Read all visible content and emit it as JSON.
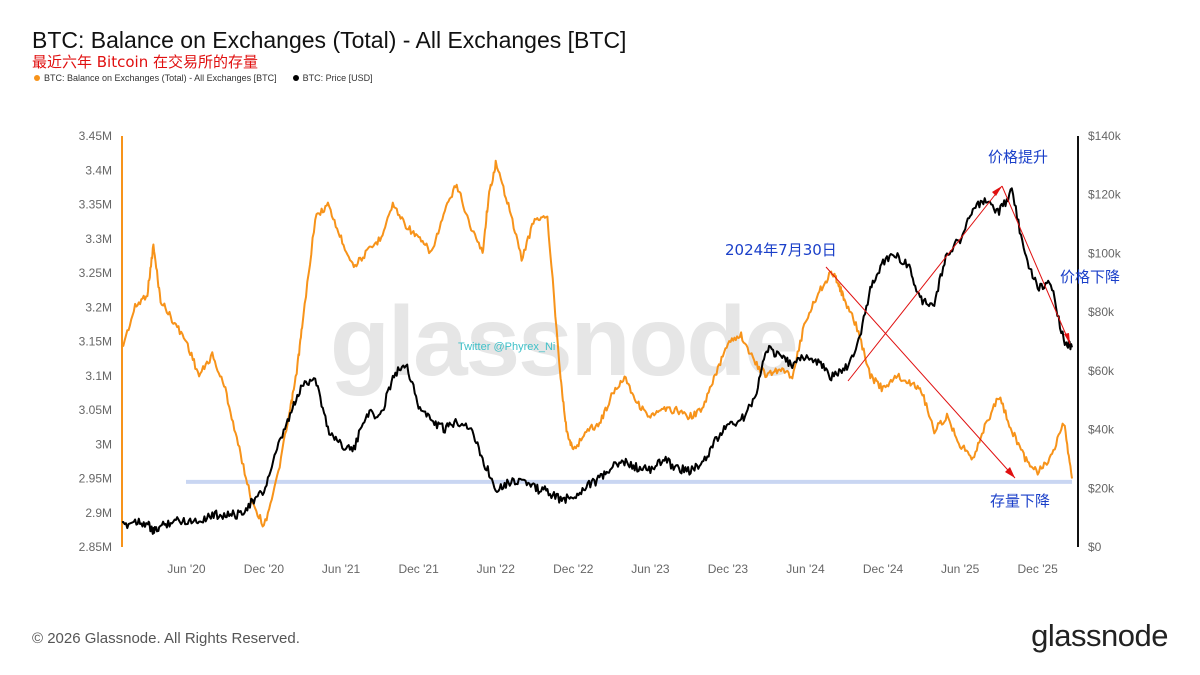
{
  "chart_data": {
    "type": "line",
    "title": "BTC: Balance on Exchanges (Total) - All Exchanges [BTC]",
    "subtitle": "最近六年 Bitcoin 在交易所的存量",
    "legend_position": "top-left",
    "grid": false,
    "x_ticks": [
      "Jun '20",
      "Dec '20",
      "Jun '21",
      "Dec '21",
      "Jun '22",
      "Dec '22",
      "Jun '23",
      "Dec '23",
      "Jun '24",
      "Dec '24",
      "Jun '25",
      "Dec '25"
    ],
    "left_axis": {
      "ylim": [
        2.85,
        3.45
      ],
      "ticks": [
        "2.85M",
        "2.9M",
        "2.95M",
        "3M",
        "3.05M",
        "3.1M",
        "3.15M",
        "3.2M",
        "3.25M",
        "3.3M",
        "3.35M",
        "3.4M",
        "3.45M"
      ]
    },
    "right_axis": {
      "ylim": [
        0,
        140
      ],
      "ticks": [
        "$0",
        "$20k",
        "$40k",
        "$60k",
        "$80k",
        "$100k",
        "$120k",
        "$140k"
      ]
    },
    "series": [
      {
        "name": "BTC: Balance on Exchanges (Total) - All Exchanges [BTC]",
        "axis": "left",
        "color": "#f7931a",
        "x": [
          "2020-01-01",
          "2020-02-01",
          "2020-03-01",
          "2020-03-15",
          "2020-04-01",
          "2020-05-01",
          "2020-06-01",
          "2020-07-01",
          "2020-08-01",
          "2020-09-01",
          "2020-10-01",
          "2020-11-01",
          "2020-12-01",
          "2021-01-01",
          "2021-02-01",
          "2021-02-15",
          "2021-03-01",
          "2021-04-01",
          "2021-05-01",
          "2021-06-01",
          "2021-07-01",
          "2021-08-01",
          "2021-09-01",
          "2021-10-01",
          "2021-11-01",
          "2021-12-01",
          "2022-01-01",
          "2022-02-01",
          "2022-03-01",
          "2022-04-01",
          "2022-05-01",
          "2022-05-15",
          "2022-06-01",
          "2022-07-01",
          "2022-08-01",
          "2022-09-01",
          "2022-10-01",
          "2022-11-01",
          "2022-11-15",
          "2022-12-01",
          "2023-01-01",
          "2023-02-01",
          "2023-03-01",
          "2023-04-01",
          "2023-05-01",
          "2023-06-01",
          "2023-07-01",
          "2023-08-01",
          "2023-09-01",
          "2023-10-01",
          "2023-11-01",
          "2023-12-01",
          "2024-01-01",
          "2024-02-01",
          "2024-03-01",
          "2024-04-01",
          "2024-05-01",
          "2024-06-01",
          "2024-07-01",
          "2024-07-30",
          "2024-08-15",
          "2024-09-01",
          "2024-10-01",
          "2024-11-01",
          "2024-12-01",
          "2025-01-01",
          "2025-02-01",
          "2025-03-01",
          "2025-04-01",
          "2025-05-01",
          "2025-06-01",
          "2025-07-01",
          "2025-08-01",
          "2025-09-01",
          "2025-10-01",
          "2025-11-01",
          "2025-12-01",
          "2026-01-01",
          "2026-02-01",
          "2026-02-20"
        ],
        "y": [
          3.14,
          3.2,
          3.22,
          3.29,
          3.21,
          3.18,
          3.15,
          3.1,
          3.13,
          3.08,
          3.0,
          2.92,
          2.88,
          2.95,
          3.05,
          3.1,
          3.17,
          3.33,
          3.35,
          3.3,
          3.26,
          3.28,
          3.3,
          3.35,
          3.32,
          3.3,
          3.28,
          3.34,
          3.38,
          3.32,
          3.28,
          3.36,
          3.41,
          3.35,
          3.27,
          3.33,
          3.33,
          3.1,
          3.02,
          2.99,
          3.02,
          3.03,
          3.07,
          3.1,
          3.06,
          3.04,
          3.05,
          3.05,
          3.04,
          3.05,
          3.1,
          3.15,
          3.16,
          3.12,
          3.1,
          3.11,
          3.1,
          3.18,
          3.22,
          3.25,
          3.24,
          3.21,
          3.17,
          3.1,
          3.08,
          3.1,
          3.09,
          3.08,
          3.02,
          3.04,
          3.0,
          2.98,
          3.03,
          3.07,
          3.02,
          2.98,
          2.96,
          2.98,
          3.03,
          2.95
        ]
      },
      {
        "name": "BTC: Price [USD]",
        "axis": "right",
        "color": "#000000",
        "x": [
          "2020-01-01",
          "2020-02-01",
          "2020-03-01",
          "2020-03-15",
          "2020-04-01",
          "2020-05-01",
          "2020-06-01",
          "2020-07-01",
          "2020-08-01",
          "2020-09-01",
          "2020-10-01",
          "2020-11-01",
          "2020-12-01",
          "2021-01-01",
          "2021-02-01",
          "2021-03-01",
          "2021-04-01",
          "2021-05-01",
          "2021-06-01",
          "2021-07-01",
          "2021-08-01",
          "2021-09-01",
          "2021-10-01",
          "2021-11-01",
          "2021-12-01",
          "2022-01-01",
          "2022-02-01",
          "2022-03-01",
          "2022-04-01",
          "2022-05-01",
          "2022-06-01",
          "2022-07-01",
          "2022-08-01",
          "2022-09-01",
          "2022-10-01",
          "2022-11-01",
          "2022-12-01",
          "2023-01-01",
          "2023-02-01",
          "2023-03-01",
          "2023-04-01",
          "2023-05-01",
          "2023-06-01",
          "2023-07-01",
          "2023-08-01",
          "2023-09-01",
          "2023-10-01",
          "2023-11-01",
          "2023-12-01",
          "2024-01-01",
          "2024-02-01",
          "2024-03-01",
          "2024-04-01",
          "2024-05-01",
          "2024-06-01",
          "2024-07-01",
          "2024-08-01",
          "2024-09-01",
          "2024-10-01",
          "2024-11-01",
          "2024-12-01",
          "2025-01-01",
          "2025-02-01",
          "2025-03-01",
          "2025-04-01",
          "2025-05-01",
          "2025-06-01",
          "2025-07-01",
          "2025-08-01",
          "2025-09-01",
          "2025-10-01",
          "2025-11-01",
          "2025-12-01",
          "2026-01-01",
          "2026-02-01",
          "2026-02-20"
        ],
        "y": [
          7,
          9,
          8,
          5,
          7,
          9,
          9,
          9,
          11,
          11,
          11,
          15,
          19,
          33,
          45,
          55,
          58,
          40,
          35,
          33,
          46,
          44,
          58,
          63,
          48,
          43,
          40,
          43,
          41,
          30,
          20,
          22,
          23,
          20,
          19,
          16,
          17,
          21,
          23,
          27,
          29,
          27,
          26,
          30,
          27,
          26,
          28,
          36,
          42,
          43,
          50,
          68,
          65,
          62,
          65,
          63,
          58,
          60,
          68,
          88,
          97,
          100,
          95,
          84,
          83,
          100,
          105,
          115,
          118,
          114,
          121,
          100,
          88,
          90,
          70,
          68
        ]
      }
    ],
    "annotations": {
      "date_label": "2024年7月30日",
      "price_up": "价格提升",
      "price_down": "价格下降",
      "stock_down": "存量下降"
    },
    "annotation_color": "#e01010",
    "support_line_color": "#c9d6f2",
    "support_level": 2.945,
    "watermark": "glassnode",
    "twitter_watermark": "Twitter @Phyrex_Ni"
  },
  "footer": {
    "copyright": "© 2026 Glassnode. All Rights Reserved."
  },
  "logo": {
    "text": "glassnode"
  }
}
